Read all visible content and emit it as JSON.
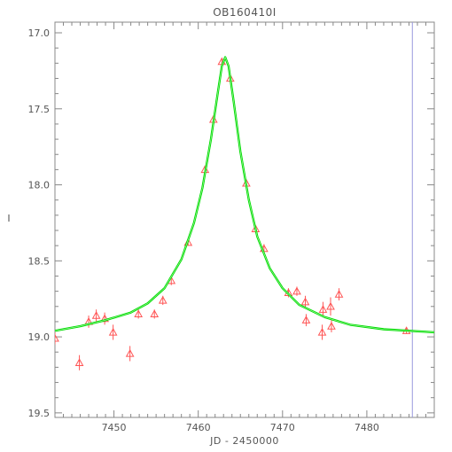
{
  "chart_data": {
    "type": "scatter",
    "title": "OB160410I",
    "xlabel": "JD - 2450000",
    "ylabel": "I",
    "xlim": [
      7443,
      7488
    ],
    "ylim": [
      19.53,
      16.93
    ],
    "y_inverted": true,
    "grid": false,
    "legend": "none",
    "x_ticks": [
      {
        "value": 7450,
        "label": "7450"
      },
      {
        "value": 7460,
        "label": "7460"
      },
      {
        "value": 7470,
        "label": "7470"
      },
      {
        "value": 7480,
        "label": "7480"
      }
    ],
    "y_ticks": [
      {
        "value": 17.0,
        "label": "17.0"
      },
      {
        "value": 17.5,
        "label": "17.5"
      },
      {
        "value": 18.0,
        "label": "18.0"
      },
      {
        "value": 18.5,
        "label": "18.5"
      },
      {
        "value": 19.0,
        "label": "19.0"
      },
      {
        "value": 19.5,
        "label": "19.5"
      }
    ],
    "vertical_marker_x": 7485.4,
    "series": [
      {
        "kind": "points_with_errors",
        "marker": "triangle",
        "color": "#ff5555",
        "points": [
          {
            "x": 7443.0,
            "y": 19.01,
            "err": 0.04
          },
          {
            "x": 7445.9,
            "y": 19.17,
            "err": 0.05
          },
          {
            "x": 7447.0,
            "y": 18.9,
            "err": 0.04
          },
          {
            "x": 7447.9,
            "y": 18.86,
            "err": 0.04
          },
          {
            "x": 7448.9,
            "y": 18.88,
            "err": 0.04
          },
          {
            "x": 7449.9,
            "y": 18.97,
            "err": 0.05
          },
          {
            "x": 7451.9,
            "y": 19.11,
            "err": 0.05
          },
          {
            "x": 7452.9,
            "y": 18.85,
            "err": 0.03
          },
          {
            "x": 7454.8,
            "y": 18.85,
            "err": 0.03
          },
          {
            "x": 7455.8,
            "y": 18.76,
            "err": 0.03
          },
          {
            "x": 7456.8,
            "y": 18.63,
            "err": 0.03
          },
          {
            "x": 7458.8,
            "y": 18.38,
            "err": 0.02
          },
          {
            "x": 7460.8,
            "y": 17.9,
            "err": 0.02
          },
          {
            "x": 7461.8,
            "y": 17.57,
            "err": 0.02
          },
          {
            "x": 7462.8,
            "y": 17.19,
            "err": 0.02
          },
          {
            "x": 7463.8,
            "y": 17.3,
            "err": 0.02
          },
          {
            "x": 7465.7,
            "y": 17.99,
            "err": 0.02
          },
          {
            "x": 7466.8,
            "y": 18.29,
            "err": 0.02
          },
          {
            "x": 7467.8,
            "y": 18.42,
            "err": 0.03
          },
          {
            "x": 7470.7,
            "y": 18.71,
            "err": 0.03
          },
          {
            "x": 7471.7,
            "y": 18.7,
            "err": 0.03
          },
          {
            "x": 7472.7,
            "y": 18.77,
            "err": 0.04
          },
          {
            "x": 7472.8,
            "y": 18.89,
            "err": 0.04
          },
          {
            "x": 7474.7,
            "y": 18.97,
            "err": 0.05
          },
          {
            "x": 7474.8,
            "y": 18.82,
            "err": 0.05
          },
          {
            "x": 7475.7,
            "y": 18.8,
            "err": 0.06
          },
          {
            "x": 7475.8,
            "y": 18.93,
            "err": 0.04
          },
          {
            "x": 7476.7,
            "y": 18.72,
            "err": 0.04
          },
          {
            "x": 7484.7,
            "y": 18.96,
            "err": 0.02
          }
        ]
      },
      {
        "kind": "model_curve",
        "color": "#00dd00",
        "curve": [
          [
            7443,
            18.96
          ],
          [
            7446,
            18.93
          ],
          [
            7449,
            18.89
          ],
          [
            7452,
            18.84
          ],
          [
            7454,
            18.78
          ],
          [
            7456,
            18.68
          ],
          [
            7458,
            18.49
          ],
          [
            7459.5,
            18.25
          ],
          [
            7460.5,
            18.02
          ],
          [
            7461.5,
            17.7
          ],
          [
            7462.3,
            17.4
          ],
          [
            7462.8,
            17.22
          ],
          [
            7463.2,
            17.16
          ],
          [
            7463.6,
            17.22
          ],
          [
            7464.2,
            17.45
          ],
          [
            7465,
            17.78
          ],
          [
            7466,
            18.1
          ],
          [
            7467,
            18.34
          ],
          [
            7468.5,
            18.55
          ],
          [
            7470,
            18.68
          ],
          [
            7472,
            18.79
          ],
          [
            7475,
            18.87
          ],
          [
            7478,
            18.92
          ],
          [
            7482,
            18.95
          ],
          [
            7488,
            18.97
          ]
        ]
      }
    ]
  }
}
